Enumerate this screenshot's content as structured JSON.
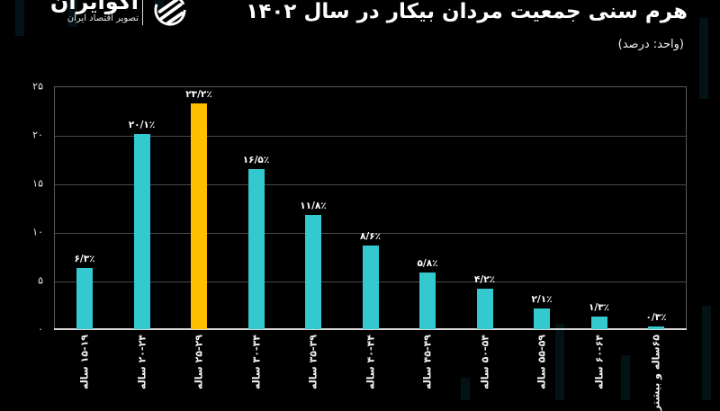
{
  "header": {
    "logo": {
      "name": "اکوایران",
      "tagline": "تصویر اقتصاد ایران"
    },
    "title": "هرم سنی جمعیت مردان بیکار در سال ۱۴۰۲",
    "unit": "(واحد: درصد)"
  },
  "colors": {
    "background": "#000000",
    "bar_default": "#33c9cf",
    "bar_highlight": "#ffbf00",
    "grid": "#4a4a4a",
    "text": "#ffffff"
  },
  "axis": {
    "y_ticks": [
      "۰",
      "۵",
      "۱۰",
      "۱۵",
      "۲۰",
      "۲۵"
    ]
  },
  "bars": [
    {
      "label": "۱۵-۱۹ ساله",
      "value_label": "۶/۳٪"
    },
    {
      "label": "۲۰-۲۴ ساله",
      "value_label": "۲۰/۱٪"
    },
    {
      "label": "۲۵-۲۹ ساله",
      "value_label": "۲۳/۲٪"
    },
    {
      "label": "۳۰-۳۴ ساله",
      "value_label": "۱۶/۵٪"
    },
    {
      "label": "۳۵-۳۹ ساله",
      "value_label": "۱۱/۸٪"
    },
    {
      "label": "۴۰-۴۴ ساله",
      "value_label": "۸/۶٪"
    },
    {
      "label": "۴۵-۴۹ ساله",
      "value_label": "۵/۸٪"
    },
    {
      "label": "۵۰-۵۴ ساله",
      "value_label": "۴/۲٪"
    },
    {
      "label": "۵۵-۵۹ ساله",
      "value_label": "۲/۱٪"
    },
    {
      "label": "۶۰-۶۴ ساله",
      "value_label": "۱/۳٪"
    },
    {
      "label": "۶۵ساله و بیشتر",
      "value_label": "۰/۳٪"
    }
  ],
  "chart_data": {
    "type": "bar",
    "title": "هرم سنی جمعیت مردان بیکار در سال ۱۴۰۲",
    "subtitle": "(واحد: درصد)",
    "xlabel": "",
    "ylabel": "درصد",
    "categories": [
      "15-19",
      "20-24",
      "25-29",
      "30-34",
      "35-39",
      "40-44",
      "45-49",
      "50-54",
      "55-59",
      "60-64",
      "65+"
    ],
    "values": [
      6.3,
      20.1,
      23.2,
      16.5,
      11.8,
      8.6,
      5.8,
      4.2,
      2.1,
      1.3,
      0.3
    ],
    "highlight_index": 2,
    "ylim": [
      0,
      25
    ],
    "yticks": [
      0,
      5,
      10,
      15,
      20,
      25
    ],
    "grid": true,
    "legend": null
  }
}
